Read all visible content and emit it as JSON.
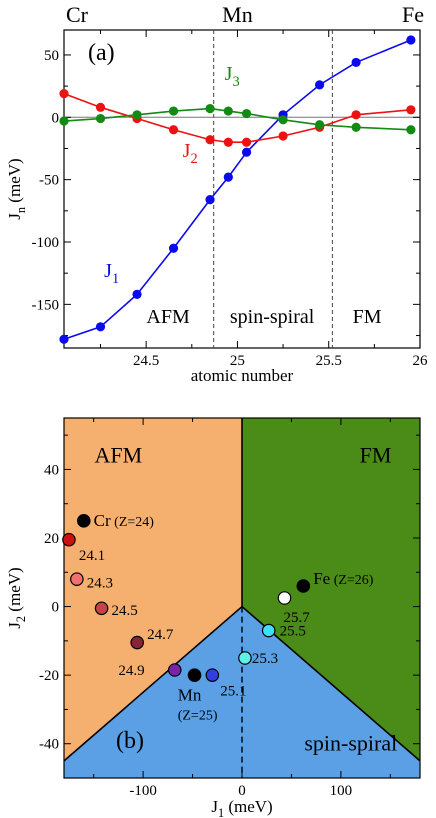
{
  "colors": {
    "j1": "#0a0aee",
    "j2": "#ee1111",
    "j3": "#138a13",
    "afm_region": "#f5b070",
    "fm_region": "#4b8b17",
    "spiral_region": "#5ba0e4",
    "text": "#000000"
  },
  "chart_data": [
    {
      "type": "line",
      "panel_label": "(a)",
      "xlabel": "atomic number",
      "ylabel": "J",
      "ylabel_sub": "n",
      "ylabel_unit": " (meV)",
      "xlim": [
        24.05,
        26.0
      ],
      "ylim": [
        -185,
        70
      ],
      "x_ticks": [
        24.5,
        25,
        25.5,
        26
      ],
      "x_tick_labels": [
        "24.5",
        "25",
        "25.5",
        "26"
      ],
      "y_ticks": [
        50,
        0,
        -50,
        -100,
        -150
      ],
      "y_tick_labels": [
        "50",
        "0",
        "-50",
        "-100",
        "-150"
      ],
      "element_labels": [
        {
          "text": "Cr",
          "x": 24.05
        },
        {
          "text": "Mn",
          "x": 25.0
        },
        {
          "text": "Fe",
          "x": 26.0
        }
      ],
      "boundaries": [
        24.87,
        25.52
      ],
      "phase_labels": [
        {
          "text": "AFM",
          "x": 24.62,
          "y": -165
        },
        {
          "text": "spin-spiral",
          "x": 25.19,
          "y": -165
        },
        {
          "text": "FM",
          "x": 25.71,
          "y": -165
        }
      ],
      "series": [
        {
          "name": "J",
          "sub": "1",
          "color": "#0a0aee",
          "label_x": 24.27,
          "label_y": -128,
          "x": [
            24.05,
            24.25,
            24.45,
            24.65,
            24.85,
            24.95,
            25.05,
            25.25,
            25.45,
            25.65,
            25.95
          ],
          "y": [
            -178,
            -168,
            -142,
            -105,
            -66,
            -48,
            -28,
            2,
            26,
            44,
            62
          ]
        },
        {
          "name": "J",
          "sub": "2",
          "color": "#ee1111",
          "label_x": 24.7,
          "label_y": -32,
          "x": [
            24.05,
            24.25,
            24.45,
            24.65,
            24.85,
            24.95,
            25.05,
            25.25,
            25.45,
            25.65,
            25.95
          ],
          "y": [
            19,
            8,
            -1,
            -10,
            -18,
            -20,
            -20,
            -15,
            -8,
            2,
            6
          ]
        },
        {
          "name": "J",
          "sub": "3",
          "color": "#138a13",
          "label_x": 24.93,
          "label_y": 30,
          "x": [
            24.05,
            24.25,
            24.45,
            24.65,
            24.85,
            24.95,
            25.05,
            25.25,
            25.45,
            25.65,
            25.95
          ],
          "y": [
            -3,
            -1,
            2,
            5,
            7,
            5,
            3,
            -2,
            -6,
            -8,
            -10
          ]
        }
      ]
    },
    {
      "type": "scatter",
      "panel_label": "(b)",
      "xlabel": "J",
      "xlabel_sub": "1",
      "xlabel_unit": " (meV)",
      "ylabel": "J",
      "ylabel_sub": "2",
      "ylabel_unit": " (meV)",
      "xlim": [
        -180,
        180
      ],
      "ylim": [
        -50,
        55
      ],
      "x_ticks": [
        -100,
        0,
        100
      ],
      "x_tick_labels": [
        "-100",
        "0",
        "100"
      ],
      "y_ticks": [
        40,
        20,
        0,
        -20,
        -40
      ],
      "y_tick_labels": [
        "40",
        "20",
        "0",
        "-20",
        "-40"
      ],
      "region_labels": [
        {
          "text": "AFM",
          "x": -125,
          "y": 42
        },
        {
          "text": "FM",
          "x": 135,
          "y": 42
        },
        {
          "text": "spin-spiral",
          "x": 110,
          "y": -42
        }
      ],
      "points": [
        {
          "label": "Cr",
          "label_extra": " (Z=24)",
          "x": -160,
          "y": 25,
          "fill": "#000000",
          "lx": -150,
          "ly": 25
        },
        {
          "label": "24.1",
          "label_extra": "",
          "x": -175,
          "y": 19.5,
          "fill": "#cc1111",
          "lx": -165,
          "ly": 15
        },
        {
          "label": "24.3",
          "label_extra": "",
          "x": -167,
          "y": 8,
          "fill": "#f07070",
          "lx": -157,
          "ly": 7
        },
        {
          "label": "24.5",
          "label_extra": "",
          "x": -142,
          "y": -0.5,
          "fill": "#c24545",
          "lx": -132,
          "ly": -1
        },
        {
          "label": "24.7",
          "label_extra": "",
          "x": -106,
          "y": -10.5,
          "fill": "#882438",
          "lx": -96,
          "ly": -8
        },
        {
          "label": "24.9",
          "label_extra": "",
          "x": -68,
          "y": -18.5,
          "fill": "#7a22a8",
          "lx": -125,
          "ly": -18.5
        },
        {
          "label": "Mn",
          "label_extra": "",
          "x": -48,
          "y": -20,
          "fill": "#000000",
          "lx": -65,
          "ly": -26
        },
        {
          "label": "25.1",
          "label_extra": "",
          "x": -30,
          "y": -20,
          "fill": "#2f3fe0",
          "lx": -22,
          "ly": -24.5
        },
        {
          "label": "25.3",
          "label_extra": "",
          "x": 3,
          "y": -15,
          "fill": "#5ff0e8",
          "lx": 10,
          "ly": -15
        },
        {
          "label": "25.5",
          "label_extra": "",
          "x": 27,
          "y": -7,
          "fill": "#3fe0ff",
          "lx": 38,
          "ly": -7
        },
        {
          "label": "25.7",
          "label_extra": "",
          "x": 43,
          "y": 2.5,
          "fill": "#ffffff",
          "lx": 42,
          "ly": -3
        },
        {
          "label": "Fe",
          "label_extra": " (Z=26)",
          "x": 62,
          "y": 6,
          "fill": "#000000",
          "lx": 72,
          "ly": 8
        }
      ],
      "mn_sublabel": {
        "text": "(Z=25)",
        "x": -65,
        "y": -31.5
      }
    }
  ]
}
